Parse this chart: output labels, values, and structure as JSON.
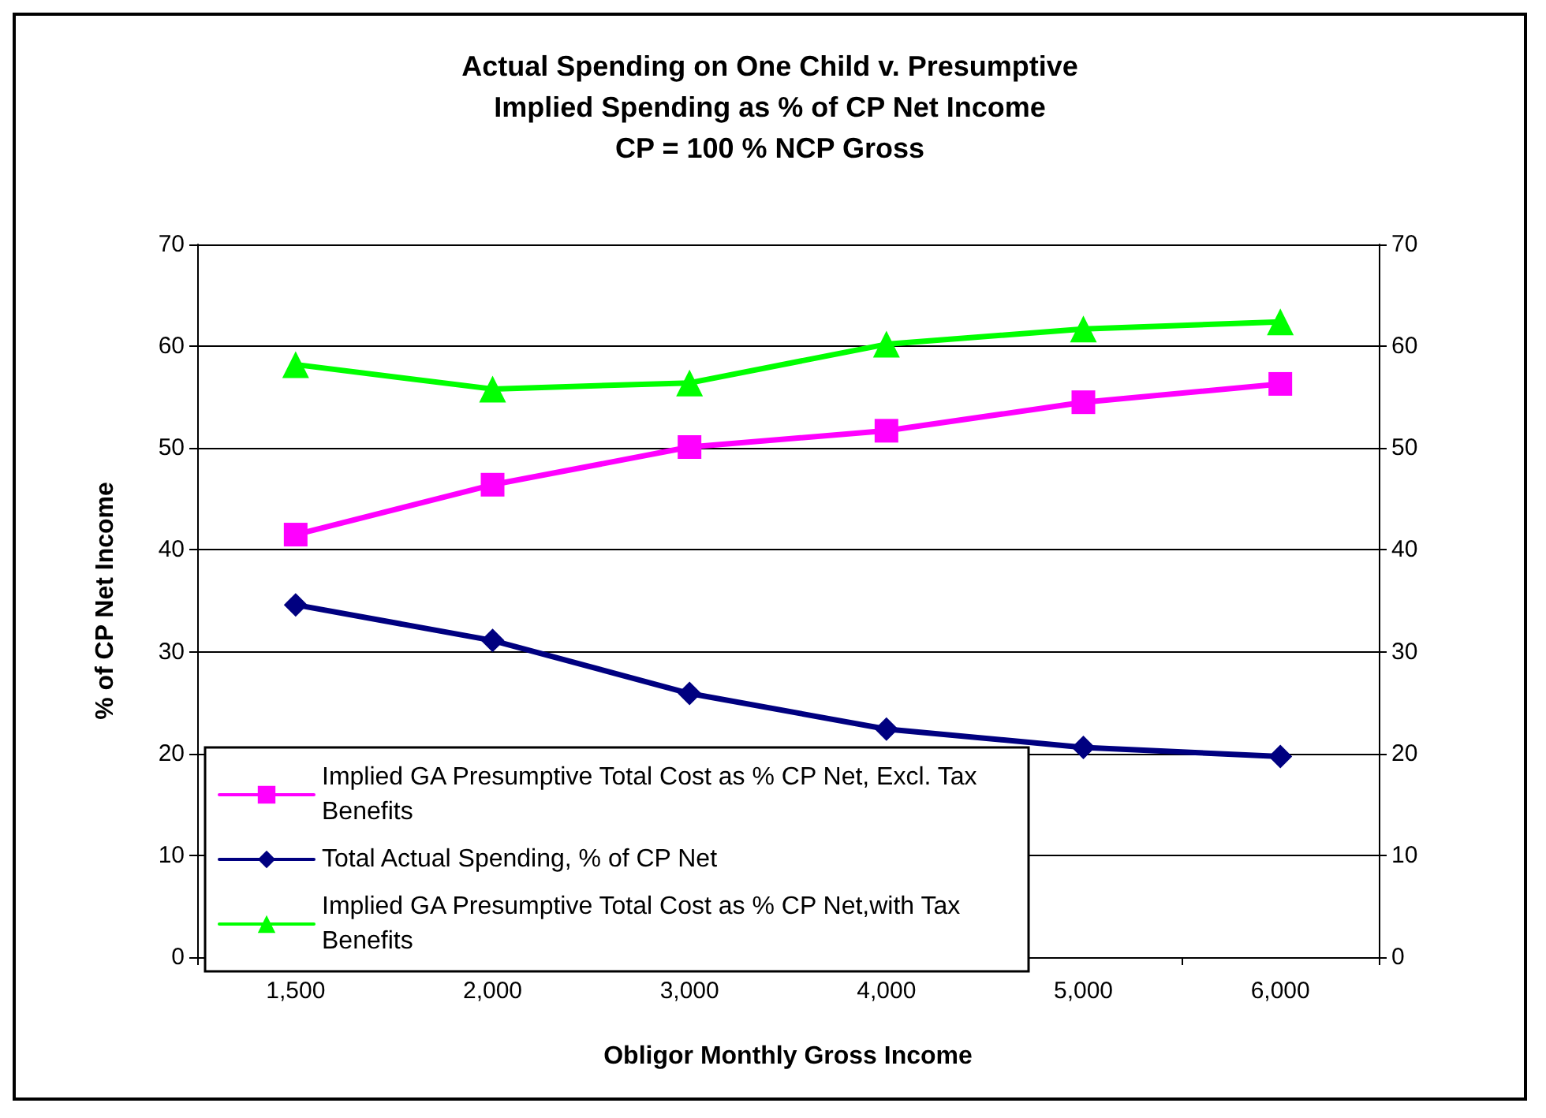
{
  "chart_data": {
    "type": "line",
    "title": "Actual Spending on One Child v. Presumptive\nImplied Spending as % of CP Net Income\nCP = 100 % NCP Gross",
    "xlabel": "Obligor Monthly Gross Income",
    "ylabel": "% of CP Net Income",
    "categories": [
      "1,500",
      "2,000",
      "3,000",
      "4,000",
      "5,000",
      "6,000"
    ],
    "series": [
      {
        "name": "Implied GA Presumptive Total Cost as % CP Net, Excl. Tax Benefits",
        "color": "#ff00ff",
        "marker": "square",
        "values": [
          41.5,
          46.4,
          50.1,
          51.7,
          54.5,
          56.3
        ]
      },
      {
        "name": "Total Actual Spending, % of CP Net",
        "color": "#000080",
        "marker": "diamond",
        "values": [
          34.6,
          31.1,
          25.9,
          22.4,
          20.6,
          19.7
        ]
      },
      {
        "name": "Implied GA Presumptive Total Cost as % CP Net,with Tax Benefits",
        "color": "#00ff00",
        "marker": "triangle",
        "values": [
          58.2,
          55.8,
          56.4,
          60.2,
          61.7,
          62.4
        ]
      }
    ],
    "ylim": [
      0,
      70
    ],
    "yticks": [
      0,
      10,
      20,
      30,
      40,
      50,
      60,
      70
    ],
    "y2lim": [
      0,
      70
    ],
    "y2ticks": [
      0,
      10,
      20,
      30,
      40,
      50,
      60,
      70
    ],
    "grid": "y",
    "legend": "bottom left",
    "line_style": "solid"
  }
}
